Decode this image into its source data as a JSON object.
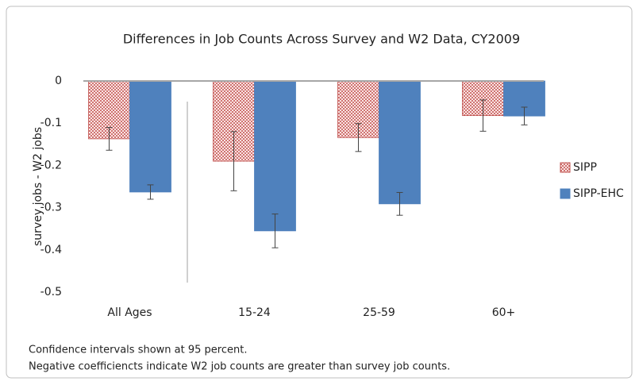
{
  "chart_data": {
    "type": "bar",
    "title": "Differences in Job Counts Across Survey and W2 Data, CY2009",
    "y_label": "survey jobs - W2 jobs",
    "categories": [
      "All Ages",
      "15-24",
      "25-59",
      "60+"
    ],
    "series": [
      {
        "name": "SIPP",
        "color": "#c0504d",
        "fill_pattern": "dots",
        "values": [
          -0.137,
          -0.19,
          -0.134,
          -0.082
        ],
        "errors": [
          0.027,
          0.07,
          0.033,
          0.037
        ]
      },
      {
        "name": "SIPP-EHC",
        "color": "#4f81bd",
        "values": [
          -0.263,
          -0.355,
          -0.291,
          -0.083
        ],
        "errors": [
          0.017,
          0.04,
          0.027,
          0.021
        ]
      }
    ],
    "ylim": [
      -0.5,
      0
    ],
    "yticks": [
      -0.5,
      -0.4,
      -0.3,
      -0.2,
      -0.1,
      0
    ],
    "grid": false,
    "legend": "right",
    "notes": [
      "Confidence intervals shown at 95 percent.",
      "Negative coefficiencts indicate W2 job counts are greater than survey job counts."
    ]
  }
}
